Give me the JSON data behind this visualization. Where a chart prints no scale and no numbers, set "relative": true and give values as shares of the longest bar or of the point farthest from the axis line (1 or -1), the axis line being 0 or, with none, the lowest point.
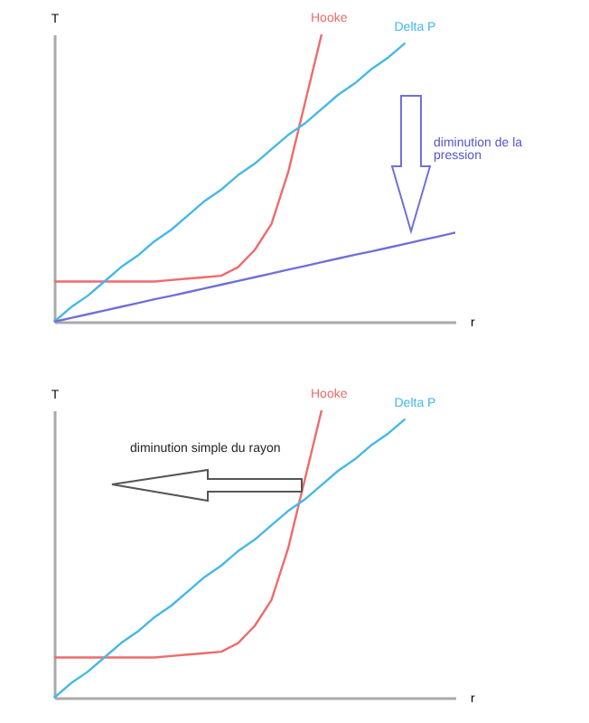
{
  "chart_data": [
    {
      "type": "line",
      "relative": true,
      "xlabel": "r",
      "ylabel": "T",
      "tick_labels": false,
      "categories": [
        null,
        null,
        null,
        null,
        null,
        null,
        null,
        null,
        null,
        null,
        null,
        null,
        null,
        null,
        null,
        null,
        null,
        null,
        null,
        null,
        null,
        null,
        null,
        null,
        null
      ],
      "series": [
        {
          "name": "Hooke",
          "color": "#ef6b6b",
          "values": [
            0.14,
            0.14,
            0.14,
            0.14,
            0.14,
            0.14,
            0.14,
            0.145,
            0.15,
            0.155,
            0.16,
            0.19,
            0.25,
            0.34,
            0.52,
            0.76,
            1,
            null,
            null,
            null,
            null,
            null,
            null,
            null,
            null
          ]
        },
        {
          "name": "Delta P",
          "color": "#45b8e8",
          "values": [
            0,
            0.05,
            0.09,
            0.14,
            0.19,
            0.23,
            0.28,
            0.32,
            0.37,
            0.42,
            0.46,
            0.51,
            0.55,
            0.6,
            0.65,
            0.69,
            0.74,
            0.79,
            0.83,
            0.88,
            0.92,
            0.97,
            null,
            null,
            null
          ]
        },
        {
          "color": "#7070d8",
          "values": [
            0,
            0.013,
            0.026,
            0.039,
            0.052,
            0.065,
            0.078,
            0.09,
            0.103,
            0.116,
            0.129,
            0.142,
            0.155,
            0.168,
            0.181,
            0.194,
            0.207,
            0.22,
            0.233,
            0.245,
            0.258,
            0.271,
            0.284,
            0.297,
            0.31
          ]
        }
      ],
      "annotations": [
        "diminution de la pression"
      ]
    },
    {
      "type": "line",
      "relative": true,
      "xlabel": "r",
      "ylabel": "T",
      "tick_labels": false,
      "categories": [
        null,
        null,
        null,
        null,
        null,
        null,
        null,
        null,
        null,
        null,
        null,
        null,
        null,
        null,
        null,
        null,
        null,
        null,
        null,
        null,
        null,
        null,
        null,
        null,
        null
      ],
      "series": [
        {
          "name": "Hooke",
          "color": "#ef6b6b",
          "values": [
            0.14,
            0.14,
            0.14,
            0.14,
            0.14,
            0.14,
            0.14,
            0.145,
            0.15,
            0.155,
            0.16,
            0.19,
            0.25,
            0.34,
            0.52,
            0.76,
            1,
            null,
            null,
            null,
            null,
            null,
            null,
            null,
            null
          ]
        },
        {
          "name": "Delta P",
          "color": "#45b8e8",
          "values": [
            0,
            0.05,
            0.09,
            0.14,
            0.19,
            0.23,
            0.28,
            0.32,
            0.37,
            0.42,
            0.46,
            0.51,
            0.55,
            0.6,
            0.65,
            0.69,
            0.74,
            0.79,
            0.83,
            0.88,
            0.92,
            0.97,
            null,
            null,
            null
          ]
        }
      ],
      "annotations": [
        "diminution simple du rayon"
      ]
    }
  ]
}
